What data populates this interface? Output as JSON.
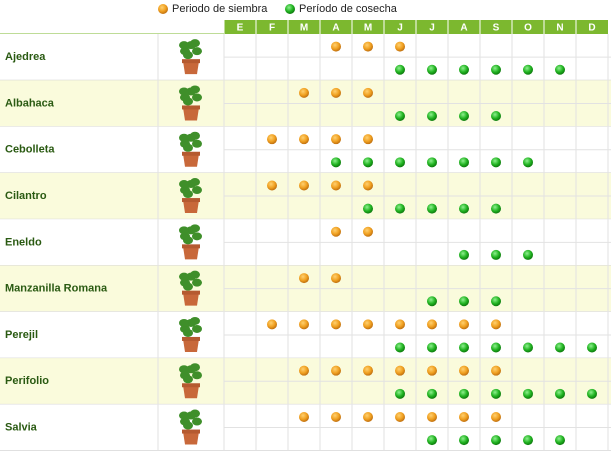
{
  "legend": {
    "sowing": "Periodo de siembra",
    "harvest": "Período de cosecha"
  },
  "months": [
    "E",
    "F",
    "M",
    "A",
    "M",
    "J",
    "J",
    "A",
    "S",
    "O",
    "N",
    "D"
  ],
  "plants": [
    {
      "name": "Ajedrea",
      "sowing_months": [
        3,
        4,
        5
      ],
      "harvest_months": [
        5,
        6,
        7,
        8,
        9,
        10
      ]
    },
    {
      "name": "Albahaca",
      "sowing_months": [
        2,
        3,
        4
      ],
      "harvest_months": [
        5,
        6,
        7,
        8
      ]
    },
    {
      "name": "Cebolleta",
      "sowing_months": [
        1,
        2,
        3,
        4
      ],
      "harvest_months": [
        3,
        4,
        5,
        6,
        7,
        8,
        9
      ]
    },
    {
      "name": "Cilantro",
      "sowing_months": [
        1,
        2,
        3,
        4
      ],
      "harvest_months": [
        4,
        5,
        6,
        7,
        8
      ]
    },
    {
      "name": "Eneldo",
      "sowing_months": [
        3,
        4
      ],
      "harvest_months": [
        7,
        8,
        9
      ]
    },
    {
      "name": "Manzanilla Romana",
      "sowing_months": [
        2,
        3
      ],
      "harvest_months": [
        6,
        7,
        8
      ]
    },
    {
      "name": "Perejil",
      "sowing_months": [
        1,
        2,
        3,
        4,
        5,
        6,
        7,
        8
      ],
      "harvest_months": [
        5,
        6,
        7,
        8,
        9,
        10,
        11
      ]
    },
    {
      "name": "Perifolio",
      "sowing_months": [
        2,
        3,
        4,
        5,
        6,
        7,
        8
      ],
      "harvest_months": [
        5,
        6,
        7,
        8,
        9,
        10,
        11
      ]
    },
    {
      "name": "Salvia",
      "sowing_months": [
        2,
        3,
        4,
        5,
        6,
        7,
        8
      ],
      "harvest_months": [
        6,
        7,
        8,
        9,
        10
      ]
    }
  ]
}
